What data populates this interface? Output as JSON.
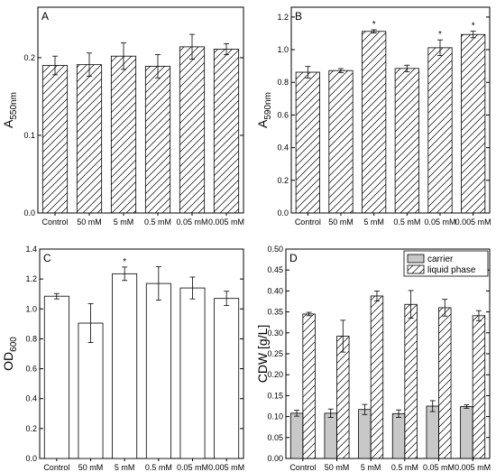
{
  "chart_data": [
    {
      "type": "bar",
      "panel": "A",
      "ylabel": "A",
      "ylabel_sub": "550nm",
      "categories": [
        "Control",
        "50 mM",
        "5 mM",
        "0.5 mM",
        "0.05 mM",
        "0.005 mM"
      ],
      "series": [
        {
          "values": [
            0.19,
            0.191,
            0.202,
            0.189,
            0.214,
            0.211
          ],
          "errors": [
            0.012,
            0.015,
            0.017,
            0.015,
            0.016,
            0.007
          ],
          "fill": "hatch"
        }
      ],
      "significance": [
        false,
        false,
        false,
        false,
        false,
        false
      ],
      "ylim": [
        0,
        0.265
      ],
      "yticks": [
        "0.0",
        "0.1",
        "0.2"
      ],
      "ytick_values": [
        0,
        0.1,
        0.2
      ]
    },
    {
      "type": "bar",
      "panel": "B",
      "ylabel": "A",
      "ylabel_sub": "590nm",
      "categories": [
        "Control",
        "50 mM",
        "5 mM",
        "0.5 mM",
        "0.05 mM",
        "0.005 mM"
      ],
      "series": [
        {
          "values": [
            0.862,
            0.872,
            1.112,
            0.885,
            1.012,
            1.093
          ],
          "errors": [
            0.035,
            0.012,
            0.01,
            0.02,
            0.048,
            0.02
          ],
          "fill": "hatch"
        }
      ],
      "significance": [
        false,
        false,
        true,
        false,
        true,
        true
      ],
      "ylim": [
        0,
        1.26
      ],
      "yticks": [
        "0.0",
        "0.2",
        "0.4",
        "0.6",
        "0.8",
        "1.0",
        "1.2"
      ],
      "ytick_values": [
        0,
        0.2,
        0.4,
        0.6,
        0.8,
        1.0,
        1.2
      ]
    },
    {
      "type": "bar",
      "panel": "C",
      "ylabel": "OD",
      "ylabel_sub": "600",
      "categories": [
        "Control",
        "50 mM",
        "5 mM",
        "0.5 mM",
        "0.05 mM",
        "0.005 mM"
      ],
      "series": [
        {
          "values": [
            1.085,
            0.905,
            1.235,
            1.17,
            1.14,
            1.07
          ],
          "errors": [
            0.018,
            0.13,
            0.045,
            0.112,
            0.073,
            0.048
          ],
          "fill": "white"
        }
      ],
      "significance": [
        false,
        false,
        true,
        false,
        false,
        false
      ],
      "ylim": [
        0,
        1.4
      ],
      "yticks": [
        "0.0",
        "0.2",
        "0.4",
        "0.6",
        "0.8",
        "1.0",
        "1.2",
        "1.4"
      ],
      "ytick_values": [
        0,
        0.2,
        0.4,
        0.6,
        0.8,
        1.0,
        1.2,
        1.4
      ]
    },
    {
      "type": "bar",
      "panel": "D",
      "ylabel": "CDW [g/L]",
      "categories": [
        "Control",
        "50 mM",
        "5 mM",
        "0.5 mM",
        "0.05 mM",
        "0.005 mM"
      ],
      "series": [
        {
          "name": "carrier",
          "values": [
            0.108,
            0.108,
            0.117,
            0.107,
            0.125,
            0.124
          ],
          "errors": [
            0.007,
            0.01,
            0.012,
            0.009,
            0.013,
            0.004
          ],
          "fill": "gray"
        },
        {
          "name": "liquid phase",
          "values": [
            0.345,
            0.292,
            0.388,
            0.368,
            0.36,
            0.341
          ],
          "errors": [
            0.004,
            0.038,
            0.012,
            0.033,
            0.02,
            0.012
          ],
          "fill": "hatch"
        }
      ],
      "significance": [
        false,
        false,
        false,
        false,
        false,
        false
      ],
      "legend": "top-right",
      "ylim": [
        0,
        0.5
      ],
      "yticks": [
        "0.00",
        "0.05",
        "0.10",
        "0.15",
        "0.20",
        "0.25",
        "0.30",
        "0.35",
        "0.40",
        "0.45",
        "0.50"
      ],
      "ytick_values": [
        0,
        0.05,
        0.1,
        0.15,
        0.2,
        0.25,
        0.3,
        0.35,
        0.4,
        0.45,
        0.5
      ]
    }
  ],
  "significance_marker": "*",
  "colors": {
    "carrier_fill": "#c8c8c8",
    "bar_stroke": "#000000",
    "background": "#ffffff"
  }
}
